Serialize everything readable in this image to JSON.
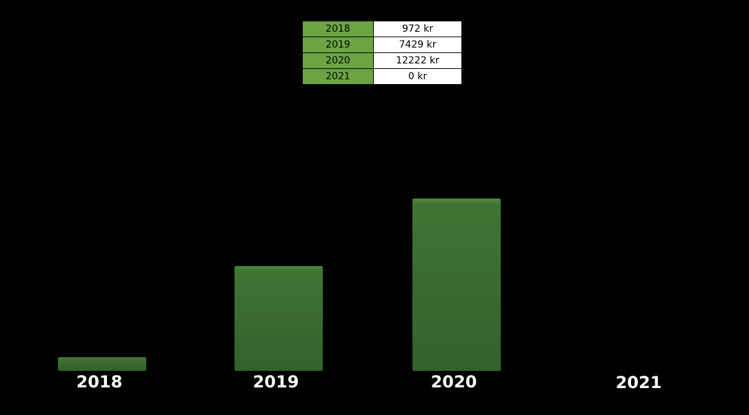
{
  "chart_data": {
    "type": "bar",
    "categories": [
      "2018",
      "2019",
      "2020",
      "2021"
    ],
    "values": [
      972,
      7429,
      12222,
      0
    ],
    "unit": "kr",
    "table": [
      {
        "year": "2018",
        "value": "972 kr"
      },
      {
        "year": "2019",
        "value": "7429 kr"
      },
      {
        "year": "2020",
        "value": "12222 kr"
      },
      {
        "year": "2021",
        "value": "0 kr"
      }
    ],
    "title": "",
    "xlabel": "",
    "ylabel": "",
    "grid": false,
    "legend": "none"
  },
  "colors": {
    "background": "#000000",
    "bar": "#3d7232",
    "bar_top": "#4e8a3c",
    "table_year_bg": "#6aa542",
    "table_value_bg": "#ffffff",
    "label": "#ffffff"
  }
}
